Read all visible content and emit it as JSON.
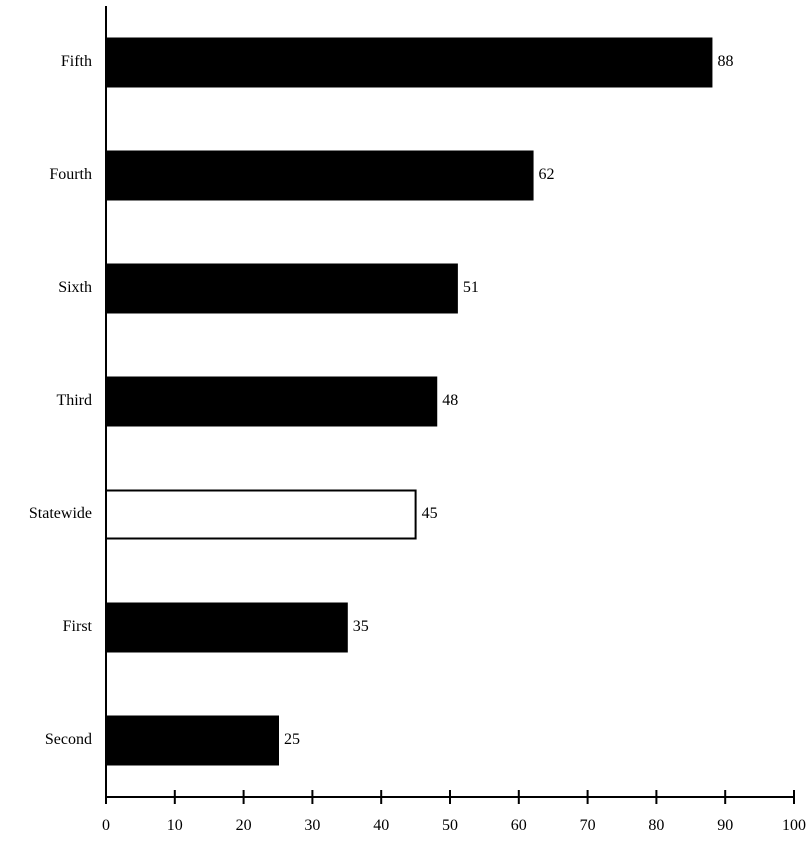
{
  "chart_data": {
    "type": "bar",
    "orientation": "horizontal",
    "categories": [
      "Fifth",
      "Fourth",
      "Sixth",
      "Third",
      "Statewide",
      "First",
      "Second"
    ],
    "values": [
      88,
      62,
      51,
      48,
      45,
      35,
      25
    ],
    "highlight": [
      "#000000",
      "#000000",
      "#000000",
      "#000000",
      "#ffffff",
      "#000000",
      "#000000"
    ],
    "title": "",
    "xlabel": "",
    "ylabel": "",
    "xlim": [
      0,
      100
    ],
    "xticks": [
      0,
      10,
      20,
      30,
      40,
      50,
      60,
      70,
      80,
      90,
      100
    ],
    "grid": false,
    "legend": "none",
    "colors": {
      "bar": "#000000",
      "statewide_bar": "#ffffff",
      "outline": "#000000"
    }
  }
}
